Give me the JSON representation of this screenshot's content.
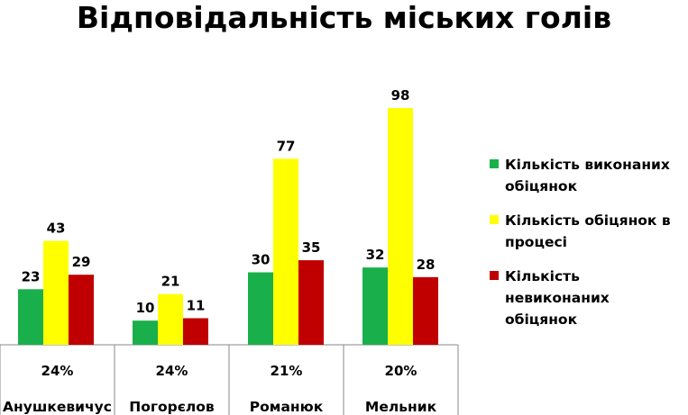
{
  "chart_data": {
    "type": "bar",
    "title": "Відповідальність міських голів",
    "categories": [
      "Анушкевичус",
      "Погорєлов",
      "Романюк",
      "Мельник"
    ],
    "category_percentages": [
      "24%",
      "24%",
      "21%",
      "20%"
    ],
    "series": [
      {
        "name": "Кількість виконаних обіцянок",
        "color": "#19b04b",
        "values": [
          23,
          10,
          30,
          32
        ]
      },
      {
        "name": "Кількість обіцянок в процесі",
        "color": "#ffff00",
        "values": [
          43,
          21,
          77,
          98
        ]
      },
      {
        "name": "Кількість невиконаних обіцянок",
        "color": "#c00000",
        "values": [
          29,
          11,
          35,
          28
        ]
      }
    ],
    "ylim": [
      0,
      98
    ],
    "grid": false,
    "legend": "right"
  }
}
